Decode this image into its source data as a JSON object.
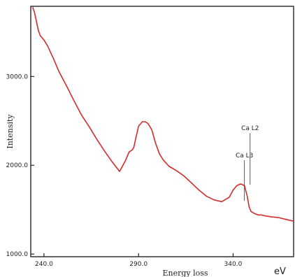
{
  "chart_data": {
    "type": "line",
    "title": "",
    "xlabel": "Energy loss",
    "ylabel": "Intensity",
    "x_unit": "eV",
    "xlim": [
      233.0,
      372.0
    ],
    "ylim": [
      970.0,
      3790.0
    ],
    "x_ticks": [
      240.0,
      290.0,
      340.0
    ],
    "x_tick_labels": [
      "240.0",
      "290.0",
      "340.0"
    ],
    "y_ticks": [
      1000.0,
      2000.0,
      3000.0
    ],
    "y_tick_labels": [
      "1000.0",
      "2000.0",
      "3000.0"
    ],
    "grid": false,
    "line_color": "#d42b2b",
    "series": [
      {
        "x": [
          234.0,
          235.0,
          236.0,
          237.0,
          238.0,
          240.0,
          242.0,
          245.0,
          248.0,
          252.0,
          256.0,
          260.0,
          264.0,
          268.0,
          272.0,
          276.0,
          280.0,
          283.0,
          285.0,
          286.5,
          287.5,
          288.5,
          290.0,
          292.0,
          293.5,
          295.0,
          297.0,
          299.0,
          301.0,
          303.0,
          306.0,
          310.0,
          314.0,
          318.0,
          322.0,
          326.0,
          330.0,
          334.0,
          338.0,
          340.0,
          342.0,
          344.0,
          346.0,
          347.5,
          348.5,
          349.5,
          351.0,
          352.0,
          353.5,
          355.0,
          357.0,
          360.0,
          364.0,
          368.0,
          372.0
        ],
        "y": [
          3780,
          3720,
          3620,
          3520,
          3460,
          3410,
          3340,
          3200,
          3050,
          2890,
          2720,
          2560,
          2430,
          2290,
          2160,
          2040,
          1930,
          2050,
          2150,
          2170,
          2200,
          2300,
          2440,
          2490,
          2490,
          2470,
          2400,
          2250,
          2130,
          2060,
          1990,
          1940,
          1880,
          1800,
          1720,
          1650,
          1610,
          1590,
          1640,
          1720,
          1770,
          1790,
          1770,
          1650,
          1530,
          1480,
          1460,
          1450,
          1440,
          1440,
          1430,
          1420,
          1410,
          1390,
          1370
        ]
      }
    ],
    "annotations": [
      {
        "label": "Ca L3",
        "x": 346.0,
        "y": 1600.0
      },
      {
        "label": "Ca L2",
        "x": 349.0,
        "y": 1780.0
      }
    ]
  }
}
